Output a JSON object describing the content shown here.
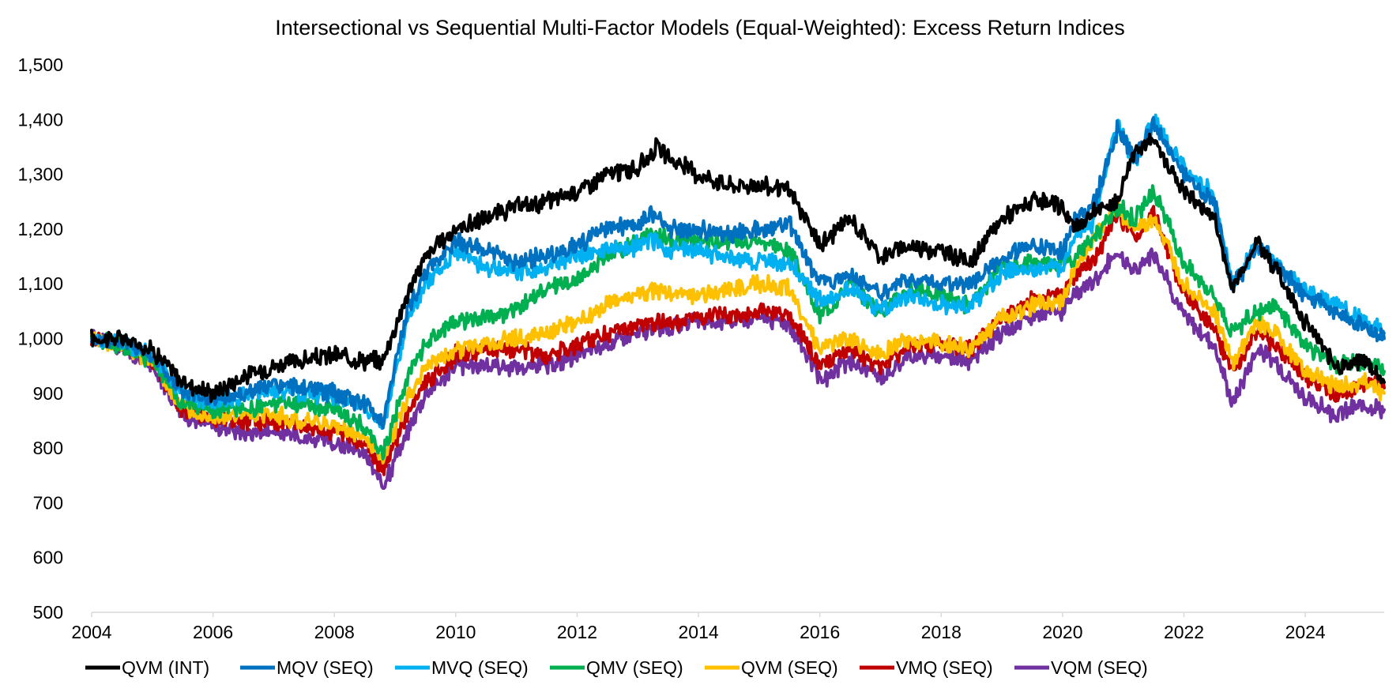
{
  "chart_data": {
    "type": "line",
    "title": "Intersectional vs Sequential Multi-Factor Models (Equal-Weighted): Excess Return Indices",
    "xlabel": "",
    "ylabel": "",
    "xlim": [
      2004,
      2025.3
    ],
    "ylim": [
      500,
      1500
    ],
    "x_ticks": [
      "2004",
      "2006",
      "2008",
      "2010",
      "2012",
      "2014",
      "2016",
      "2018",
      "2020",
      "2022",
      "2024"
    ],
    "x_tick_values": [
      2004,
      2006,
      2008,
      2010,
      2012,
      2014,
      2016,
      2018,
      2020,
      2022,
      2024
    ],
    "y_ticks": [
      "500",
      "600",
      "700",
      "800",
      "900",
      "1,000",
      "1,100",
      "1,200",
      "1,300",
      "1,400",
      "1,500"
    ],
    "y_tick_values": [
      500,
      600,
      700,
      800,
      900,
      1000,
      1100,
      1200,
      1300,
      1400,
      1500
    ],
    "grid": false,
    "legend_position": "bottom",
    "x": [
      2004.0,
      2004.5,
      2005.0,
      2005.5,
      2006.0,
      2006.5,
      2007.0,
      2007.5,
      2008.0,
      2008.5,
      2008.8,
      2009.2,
      2009.5,
      2010.0,
      2010.5,
      2011.0,
      2011.5,
      2012.0,
      2012.5,
      2013.0,
      2013.3,
      2013.5,
      2014.0,
      2014.5,
      2015.0,
      2015.5,
      2016.0,
      2016.5,
      2017.0,
      2017.5,
      2018.0,
      2018.5,
      2019.0,
      2019.5,
      2020.0,
      2020.2,
      2020.5,
      2020.9,
      2021.2,
      2021.5,
      2022.0,
      2022.5,
      2022.8,
      2023.2,
      2023.5,
      2024.0,
      2024.5,
      2025.0,
      2025.3
    ],
    "series": [
      {
        "name": "QVM (INT)",
        "color": "#000000",
        "values": [
          1000,
          1000,
          980,
          920,
          900,
          930,
          950,
          960,
          970,
          960,
          960,
          1080,
          1150,
          1200,
          1220,
          1240,
          1250,
          1270,
          1300,
          1310,
          1350,
          1330,
          1300,
          1280,
          1280,
          1270,
          1170,
          1220,
          1150,
          1170,
          1160,
          1140,
          1220,
          1250,
          1240,
          1200,
          1230,
          1250,
          1350,
          1360,
          1270,
          1220,
          1090,
          1180,
          1130,
          1030,
          950,
          960,
          920
        ]
      },
      {
        "name": "MQV (SEQ)",
        "color": "#0070c0",
        "values": [
          1000,
          995,
          970,
          900,
          890,
          900,
          915,
          910,
          900,
          880,
          850,
          1050,
          1120,
          1180,
          1160,
          1140,
          1150,
          1170,
          1200,
          1210,
          1230,
          1200,
          1200,
          1190,
          1200,
          1210,
          1100,
          1120,
          1080,
          1110,
          1100,
          1100,
          1150,
          1170,
          1160,
          1220,
          1240,
          1380,
          1330,
          1390,
          1300,
          1250,
          1090,
          1170,
          1140,
          1080,
          1050,
          1020,
          1000
        ]
      },
      {
        "name": "MVQ (SEQ)",
        "color": "#00b0f0",
        "values": [
          1000,
          995,
          970,
          900,
          885,
          895,
          905,
          900,
          895,
          875,
          840,
          1030,
          1100,
          1160,
          1130,
          1120,
          1130,
          1150,
          1160,
          1170,
          1180,
          1160,
          1160,
          1150,
          1140,
          1140,
          1070,
          1090,
          1050,
          1080,
          1060,
          1060,
          1120,
          1130,
          1130,
          1190,
          1210,
          1390,
          1320,
          1400,
          1310,
          1260,
          1100,
          1170,
          1140,
          1090,
          1060,
          1030,
          1010
        ]
      },
      {
        "name": "QMV (SEQ)",
        "color": "#00b050",
        "values": [
          1000,
          990,
          960,
          880,
          870,
          870,
          880,
          880,
          870,
          840,
          790,
          930,
          990,
          1030,
          1040,
          1050,
          1090,
          1110,
          1150,
          1180,
          1190,
          1180,
          1180,
          1180,
          1180,
          1160,
          1040,
          1100,
          1050,
          1090,
          1080,
          1060,
          1130,
          1140,
          1140,
          1150,
          1180,
          1240,
          1220,
          1270,
          1140,
          1080,
          1010,
          1050,
          1060,
          990,
          950,
          960,
          940
        ]
      },
      {
        "name": "QVM (SEQ)",
        "color": "#ffc000",
        "values": [
          1000,
          990,
          960,
          870,
          860,
          860,
          860,
          850,
          840,
          820,
          780,
          890,
          950,
          980,
          990,
          1000,
          1010,
          1030,
          1060,
          1080,
          1090,
          1080,
          1080,
          1090,
          1100,
          1090,
          980,
          1000,
          970,
          1000,
          990,
          980,
          1040,
          1060,
          1070,
          1130,
          1180,
          1240,
          1200,
          1220,
          1100,
          1050,
          950,
          1030,
          1010,
          940,
          910,
          920,
          900
        ]
      },
      {
        "name": "VMQ (SEQ)",
        "color": "#c00000",
        "values": [
          1000,
          990,
          960,
          870,
          855,
          850,
          850,
          840,
          830,
          810,
          760,
          860,
          920,
          970,
          980,
          980,
          970,
          990,
          1010,
          1020,
          1030,
          1030,
          1040,
          1040,
          1050,
          1040,
          950,
          980,
          950,
          990,
          990,
          980,
          1040,
          1070,
          1080,
          1120,
          1140,
          1230,
          1180,
          1230,
          1080,
          1020,
          940,
          1010,
          990,
          930,
          900,
          920,
          910
        ]
      },
      {
        "name": "VQM (SEQ)",
        "color": "#7030a0",
        "values": [
          1000,
          985,
          950,
          860,
          840,
          830,
          830,
          820,
          810,
          790,
          730,
          830,
          900,
          950,
          950,
          950,
          950,
          970,
          990,
          1010,
          1020,
          1020,
          1030,
          1030,
          1040,
          1030,
          920,
          960,
          930,
          970,
          970,
          960,
          1010,
          1040,
          1050,
          1080,
          1100,
          1160,
          1120,
          1160,
          1040,
          990,
          880,
          980,
          960,
          890,
          860,
          880,
          870
        ]
      }
    ]
  }
}
